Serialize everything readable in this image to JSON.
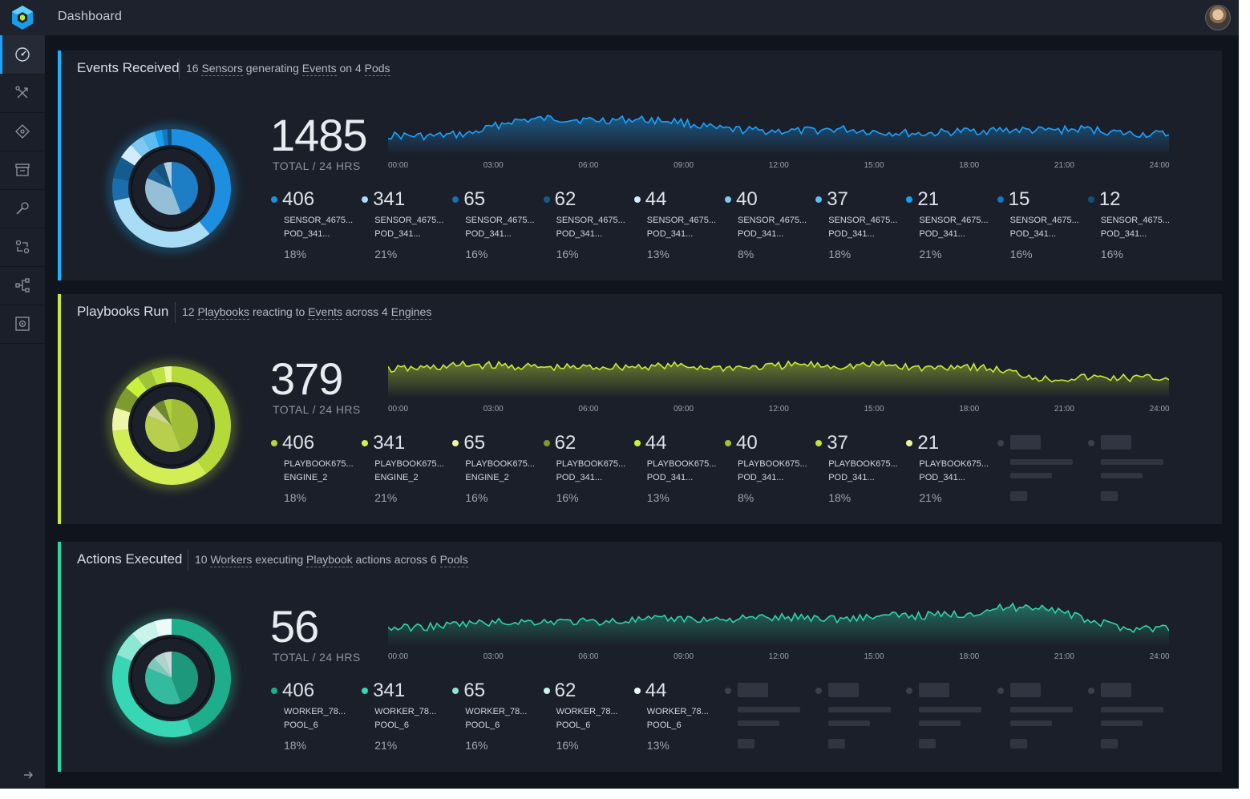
{
  "header": {
    "title": "Dashboard"
  },
  "nav": [
    "dashboard",
    "rules",
    "actions",
    "history",
    "packs",
    "triggers",
    "workflows",
    "settings"
  ],
  "axis_labels": [
    "00:00",
    "03:00",
    "06:00",
    "09:00",
    "12:00",
    "15:00",
    "18:00",
    "21:00",
    "24:00"
  ],
  "panels": [
    {
      "title": "Events Received",
      "sub": {
        "count": "16",
        "w1": "Sensors",
        "mid": "generating",
        "w2": "Events",
        "mid2": "on 4",
        "w3": "Pods"
      },
      "total": "1485",
      "total_label": "TOTAL / 24 HRS",
      "accent": "#19b3ff",
      "items": [
        {
          "value": "406",
          "l1": "SENSOR_4675...",
          "l2": "POD_341...",
          "pct": "18%",
          "color": "#1e8fe0"
        },
        {
          "value": "341",
          "l1": "SENSOR_4675...",
          "l2": "POD_341...",
          "pct": "21%",
          "color": "#a9dcf5"
        },
        {
          "value": "65",
          "l1": "SENSOR_4675...",
          "l2": "POD_341...",
          "pct": "16%",
          "color": "#1a6eab"
        },
        {
          "value": "62",
          "l1": "SENSOR_4675...",
          "l2": "POD_341...",
          "pct": "16%",
          "color": "#155c8e"
        },
        {
          "value": "44",
          "l1": "SENSOR_4675...",
          "l2": "POD_341...",
          "pct": "13%",
          "color": "#d1ecfa"
        },
        {
          "value": "40",
          "l1": "SENSOR_4675...",
          "l2": "POD_341...",
          "pct": "8%",
          "color": "#7fc8f0"
        },
        {
          "value": "37",
          "l1": "SENSOR_4675...",
          "l2": "POD_341...",
          "pct": "18%",
          "color": "#5bbcf2"
        },
        {
          "value": "21",
          "l1": "SENSOR_4675...",
          "l2": "POD_341...",
          "pct": "21%",
          "color": "#1aa0ee"
        },
        {
          "value": "15",
          "l1": "SENSOR_4675...",
          "l2": "POD_341...",
          "pct": "16%",
          "color": "#1676be"
        },
        {
          "value": "12",
          "l1": "SENSOR_4675...",
          "l2": "POD_341...",
          "pct": "16%",
          "color": "#124f7c"
        }
      ],
      "placeholders": 0
    },
    {
      "title": "Playbooks Run",
      "sub": {
        "count": "12",
        "w1": "Playbooks",
        "mid": "reacting to",
        "w2": "Events",
        "mid2": "across 4",
        "w3": "Engines"
      },
      "total": "379",
      "total_label": "TOTAL / 24 HRS",
      "accent": "#c6ea36",
      "items": [
        {
          "value": "406",
          "l1": "PLAYBOOK675...",
          "l2": "ENGINE_2",
          "pct": "18%",
          "color": "#b6d93a"
        },
        {
          "value": "341",
          "l1": "PLAYBOOK675...",
          "l2": "ENGINE_2",
          "pct": "21%",
          "color": "#d3ee55"
        },
        {
          "value": "65",
          "l1": "PLAYBOOK675...",
          "l2": "ENGINE_2",
          "pct": "16%",
          "color": "#eef6a8"
        },
        {
          "value": "62",
          "l1": "PLAYBOOK675...",
          "l2": "POD_341...",
          "pct": "16%",
          "color": "#7f9a2e"
        },
        {
          "value": "44",
          "l1": "PLAYBOOK675...",
          "l2": "POD_341...",
          "pct": "13%",
          "color": "#c9f23c"
        },
        {
          "value": "40",
          "l1": "PLAYBOOK675...",
          "l2": "POD_341...",
          "pct": "8%",
          "color": "#9fc436"
        },
        {
          "value": "37",
          "l1": "PLAYBOOK675...",
          "l2": "POD_341...",
          "pct": "18%",
          "color": "#bde33e"
        },
        {
          "value": "21",
          "l1": "PLAYBOOK675...",
          "l2": "POD_341...",
          "pct": "21%",
          "color": "#eaf6a0"
        }
      ],
      "placeholders": 2
    },
    {
      "title": "Actions Executed",
      "sub": {
        "count": "10",
        "w1": "Workers",
        "mid": "executing",
        "w2": "Playbook",
        "mid2": "actions across 6",
        "w3": "Pools"
      },
      "total": "56",
      "total_label": "TOTAL / 24 HRS",
      "accent": "#2fd3a7",
      "items": [
        {
          "value": "406",
          "l1": "WORKER_78...",
          "l2": "POOL_6",
          "pct": "18%",
          "color": "#1fae8b"
        },
        {
          "value": "341",
          "l1": "WORKER_78...",
          "l2": "POOL_6",
          "pct": "21%",
          "color": "#37d6b4"
        },
        {
          "value": "65",
          "l1": "WORKER_78...",
          "l2": "POOL_6",
          "pct": "16%",
          "color": "#8ce7d3"
        },
        {
          "value": "62",
          "l1": "WORKER_78...",
          "l2": "POOL_6",
          "pct": "16%",
          "color": "#c9f4ec"
        },
        {
          "value": "44",
          "l1": "WORKER_78...",
          "l2": "POOL_6",
          "pct": "13%",
          "color": "#eafbf8"
        }
      ],
      "placeholders": 5
    }
  ]
}
